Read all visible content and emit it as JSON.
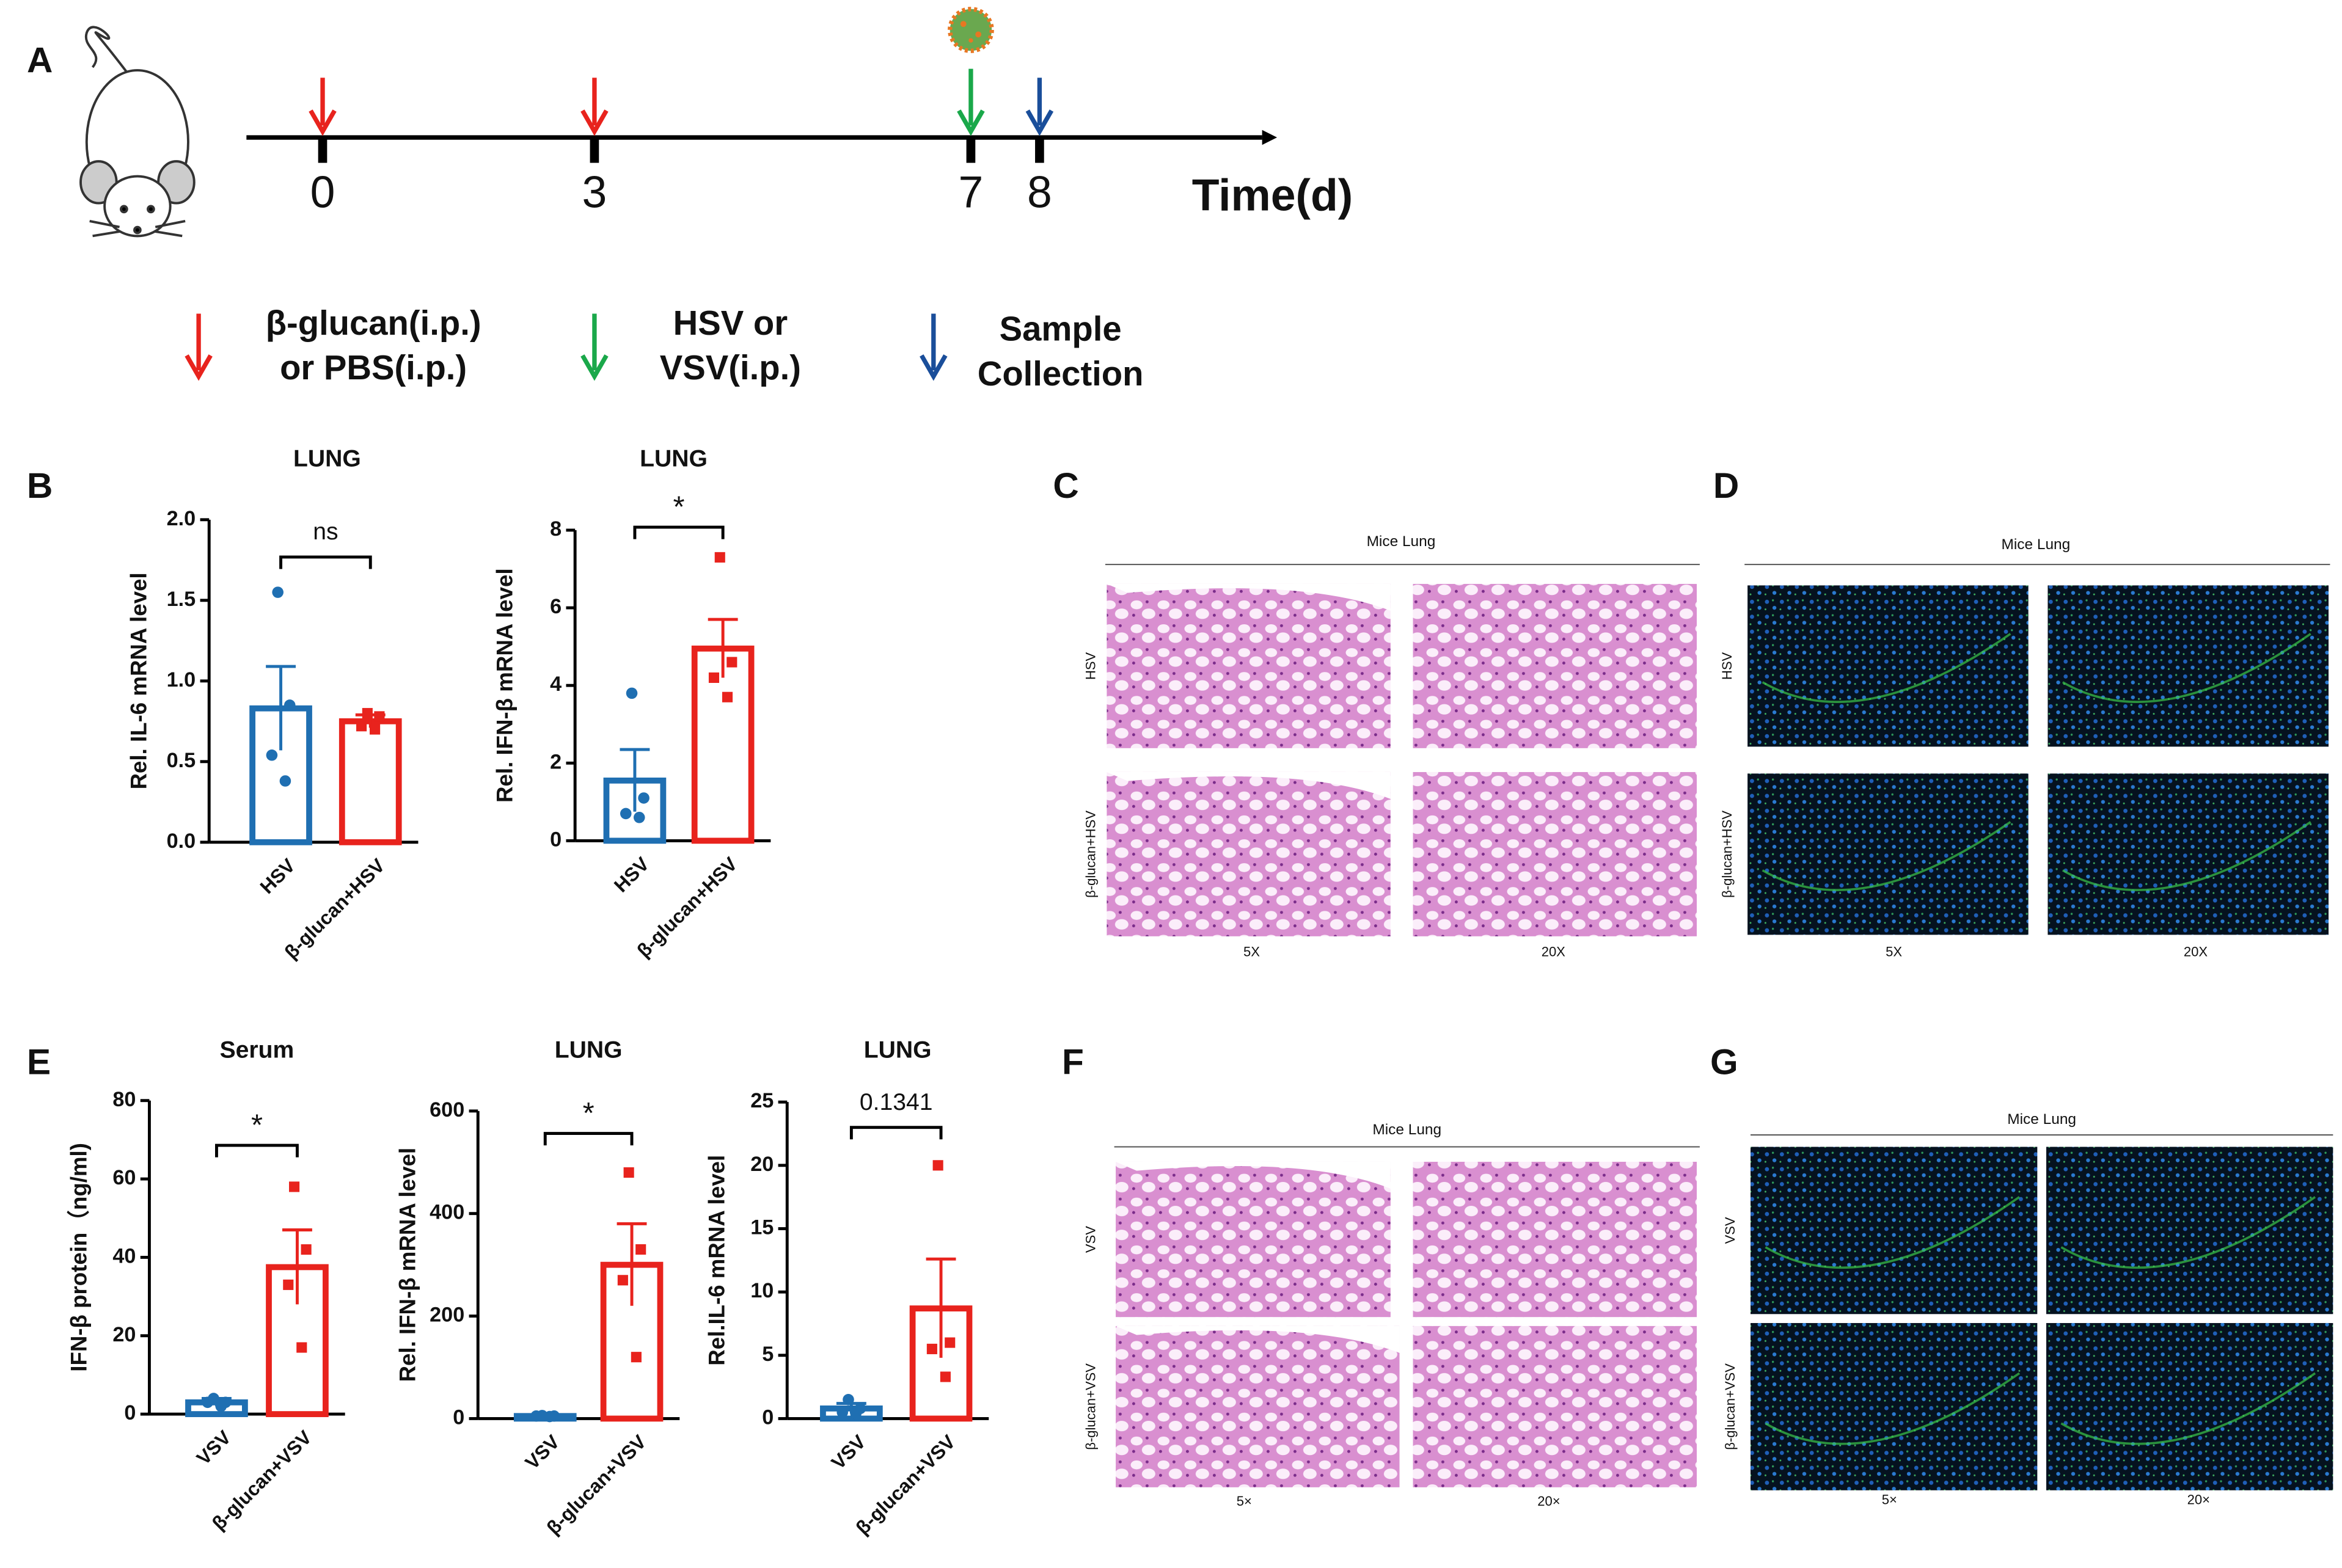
{
  "panel_a": {
    "label": "A",
    "time_points": [
      "0",
      "3",
      "7",
      "8"
    ],
    "axis_label": "Time(d)",
    "legend": [
      {
        "lines": [
          "β-glucan(i.p.)",
          "or PBS(i.p.)"
        ],
        "color": "#e8231d"
      },
      {
        "lines": [
          "HSV or",
          "VSV(i.p.)"
        ],
        "color": "#1aa84a"
      },
      {
        "lines": [
          "Sample",
          "Collection"
        ],
        "color": "#1a4e9a"
      }
    ]
  },
  "chart_data": [
    {
      "type": "bar",
      "panel_label": "B",
      "title": "LUNG",
      "y_label": "Rel. IL-6 mRNA level",
      "categories": [
        "HSV",
        "β-glucan+HSV"
      ],
      "colors": [
        "#1f6fb2",
        "#e8231d"
      ],
      "markers": [
        "circle",
        "square"
      ],
      "values": [
        0.83,
        0.75
      ],
      "errors": [
        0.26,
        0.04
      ],
      "points": [
        [
          1.55,
          0.85,
          0.54,
          0.38
        ],
        [
          0.8,
          0.78,
          0.72,
          0.7
        ]
      ],
      "ylim": [
        0,
        2
      ],
      "yticks": [
        {
          "value": 0,
          "label": "0.0"
        },
        {
          "value": 0.5,
          "label": "0.5"
        },
        {
          "value": 1,
          "label": "1.0"
        },
        {
          "value": 1.5,
          "label": "1.5"
        },
        {
          "value": 2,
          "label": "2.0"
        }
      ],
      "significance": "ns"
    },
    {
      "type": "bar",
      "title": "LUNG",
      "y_label": "Rel. IFN-β mRNA level",
      "categories": [
        "HSV",
        "β-glucan+HSV"
      ],
      "colors": [
        "#1f6fb2",
        "#e8231d"
      ],
      "markers": [
        "circle",
        "square"
      ],
      "values": [
        1.55,
        4.95
      ],
      "errors": [
        0.8,
        0.75
      ],
      "points": [
        [
          3.8,
          1.1,
          0.7,
          0.6
        ],
        [
          7.3,
          4.6,
          4.2,
          3.7
        ]
      ],
      "ylim": [
        0,
        8
      ],
      "yticks": [
        0,
        2,
        4,
        6,
        8
      ],
      "significance": "*"
    },
    {
      "type": "bar",
      "panel_label": "E",
      "title": "Serum",
      "y_label": "IFN-β protein（ng/ml)",
      "categories": [
        "VSV",
        "β-glucan+VSV"
      ],
      "colors": [
        "#1f6fb2",
        "#e8231d"
      ],
      "markers": [
        "circle",
        "square"
      ],
      "values": [
        3,
        37.5
      ],
      "errors": [
        1,
        9.5
      ],
      "points": [
        [
          4,
          3,
          3,
          2
        ],
        [
          58,
          42,
          33,
          17
        ]
      ],
      "ylim": [
        0,
        80
      ],
      "yticks": [
        0,
        20,
        40,
        60,
        80
      ],
      "significance": "*"
    },
    {
      "type": "bar",
      "title": "LUNG",
      "y_label": "Rel. IFN-β mRNA level",
      "categories": [
        "VSV",
        "β-glucan+VSV"
      ],
      "colors": [
        "#1f6fb2",
        "#e8231d"
      ],
      "markers": [
        "circle",
        "square"
      ],
      "values": [
        5,
        300
      ],
      "errors": [
        2,
        80
      ],
      "points": [
        [
          6,
          5,
          5,
          4
        ],
        [
          480,
          330,
          270,
          120
        ]
      ],
      "ylim": [
        0,
        600
      ],
      "yticks": [
        0,
        200,
        400,
        600
      ],
      "significance": "*"
    },
    {
      "type": "bar",
      "title": "LUNG",
      "y_label": "Rel.IL-6 mRNA level",
      "categories": [
        "VSV",
        "β-glucan+VSV"
      ],
      "colors": [
        "#1f6fb2",
        "#e8231d"
      ],
      "markers": [
        "circle",
        "square"
      ],
      "values": [
        0.8,
        8.7
      ],
      "errors": [
        0.4,
        3.9
      ],
      "points": [
        [
          1.5,
          0.8,
          0.5,
          0.4
        ],
        [
          20,
          6,
          5.5,
          3.3
        ]
      ],
      "ylim": [
        0,
        25
      ],
      "yticks": [
        0,
        5,
        10,
        15,
        20,
        25
      ],
      "significance": "0.1341"
    }
  ],
  "micrographs": [
    {
      "label": "C",
      "title": "Mice  Lung",
      "rows": [
        "HSV",
        "β-glucan+HSV"
      ],
      "columns": [
        "5X",
        "20X"
      ],
      "stain": "he"
    },
    {
      "label": "D",
      "title": "Mice  Lung",
      "rows": [
        "HSV",
        "β-glucan+HSV"
      ],
      "columns": [
        "5X",
        "20X"
      ],
      "stain": "fluorescence"
    },
    {
      "label": "F",
      "title": "Mice Lung",
      "rows": [
        "VSV",
        "β-glucan+VSV"
      ],
      "columns": [
        "5×",
        "20×"
      ],
      "stain": "he"
    },
    {
      "label": "G",
      "title": "Mice Lung",
      "rows": [
        "VSV",
        "β-glucan+VSV"
      ],
      "columns": [
        "5×",
        "20×"
      ],
      "stain": "fluorescence"
    }
  ]
}
